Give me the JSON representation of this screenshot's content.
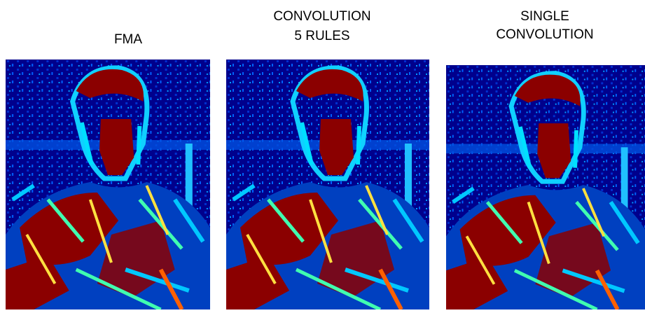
{
  "panels": [
    {
      "title": [
        "FMA"
      ]
    },
    {
      "title": [
        "CONVOLUTION",
        "5 RULES"
      ]
    },
    {
      "title": [
        "SINGLE",
        "CONVOLUTION"
      ]
    }
  ]
}
